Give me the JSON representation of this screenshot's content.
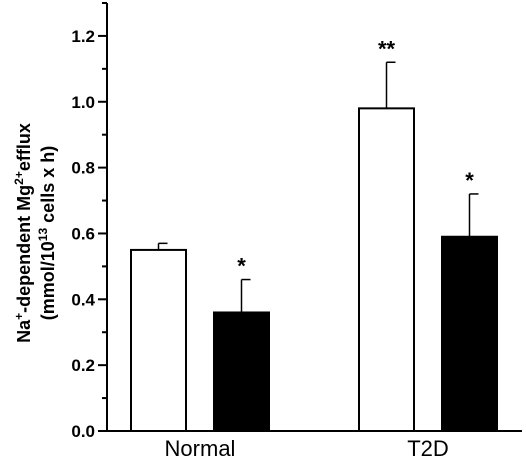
{
  "chart_data": {
    "type": "bar",
    "categories": [
      "Normal",
      "T2D"
    ],
    "series": [
      {
        "fill": "#ffffff",
        "values": [
          0.55,
          0.98
        ],
        "errors": [
          0.02,
          0.14
        ],
        "markers": [
          "",
          "**"
        ]
      },
      {
        "fill": "#000000",
        "values": [
          0.36,
          0.59
        ],
        "errors": [
          0.1,
          0.13
        ],
        "markers": [
          "*",
          "*"
        ]
      }
    ],
    "ylim": [
      0,
      1.3
    ],
    "yticks": [
      "0.0",
      "0.2",
      "0.4",
      "0.6",
      "0.8",
      "1.0",
      "1.2"
    ],
    "ylabel": {
      "line1_a": "Na",
      "line1_sup1": "+",
      "line1_b": "-dependent Mg",
      "line1_sup2": "2+",
      "line1_c": "efflux",
      "line2_a": "(mmol/10",
      "line2_sup": "13",
      "line2_b": " cells x h)"
    }
  }
}
